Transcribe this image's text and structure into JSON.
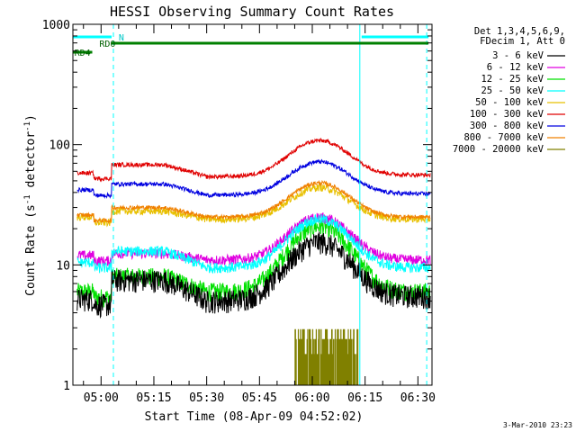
{
  "page": {
    "timestamp": "3-Mar-2010 23:23"
  },
  "chart_data": {
    "type": "line",
    "title": "HESSI Observing Summary Count Rates",
    "xlabel": "Start Time (08-Apr-09 04:52:02)",
    "ylabel_parts": [
      "Count Rate (s",
      "-1",
      " detector",
      "-1",
      ")"
    ],
    "yscale": "log",
    "ylim": [
      1,
      1000
    ],
    "xlim_minutes": [
      292,
      394
    ],
    "x_unit": "minutes after 00:00 UT on 08-Apr-09",
    "y_ticks": [
      {
        "value": 1,
        "label": "1"
      },
      {
        "value": 10,
        "label": "10"
      },
      {
        "value": 100,
        "label": "100"
      },
      {
        "value": 1000,
        "label": "1000"
      }
    ],
    "x_ticks": [
      {
        "value": 300,
        "label": "05:00"
      },
      {
        "value": 315,
        "label": "05:15"
      },
      {
        "value": 330,
        "label": "05:30"
      },
      {
        "value": 345,
        "label": "05:45"
      },
      {
        "value": 360,
        "label": "06:00"
      },
      {
        "value": 375,
        "label": "06:15"
      },
      {
        "value": 390,
        "label": "06:30"
      }
    ],
    "legend_header": [
      "Det 1,3,4,5,6,9,",
      "FDecim 1, Att 0"
    ],
    "legend_position": "right of plot, top",
    "series": [
      {
        "name": "3 - 6 keV",
        "color": "#000000"
      },
      {
        "name": "6 - 12 keV",
        "color": "#e000e0"
      },
      {
        "name": "12 - 25 keV",
        "color": "#00e000"
      },
      {
        "name": "25 - 50 keV",
        "color": "#00ffff"
      },
      {
        "name": "50 - 100 keV",
        "color": "#e8c000"
      },
      {
        "name": "100 - 300 keV",
        "color": "#e00000"
      },
      {
        "name": "300 - 800 keV",
        "color": "#0000e0"
      },
      {
        "name": "800 - 7000 keV",
        "color": "#f08000"
      },
      {
        "name": "7000 - 20000 keV",
        "color": "#808000"
      }
    ],
    "flag_bars": [
      {
        "label": "N",
        "color": "#00ffff",
        "segments": [
          [
            292,
            303
          ],
          [
            374,
            393
          ]
        ]
      },
      {
        "label": "RD0",
        "color": "#008000",
        "segments": [
          [
            303,
            393
          ]
        ]
      },
      {
        "label": "RD4",
        "color": "#008000",
        "segments": [
          [
            292,
            297.5
          ]
        ]
      }
    ],
    "vertical_markers": [
      {
        "x": 303.5,
        "style": "dashed",
        "color": "#00ffff"
      },
      {
        "x": 373.5,
        "style": "solid",
        "color": "#00ffff"
      },
      {
        "x": 392.5,
        "style": "dashed",
        "color": "#00ffff"
      }
    ],
    "curve_shape": {
      "description": "flat baseline with a smooth peak near 06:02, data gap 04:52-04:53",
      "peak_time": 362,
      "peak_width": 7.5,
      "dip_window": [
        298,
        303
      ]
    },
    "series_levels": [
      {
        "name": "3 - 6 keV",
        "base_early": 5.2,
        "base_late": 7.5,
        "base_mid": 5.0,
        "peak": 15.5,
        "base_end": 5.5
      },
      {
        "name": "6 - 12 keV",
        "base_early": 12.0,
        "base_late": 12.5,
        "base_mid": 11.0,
        "peak": 25.0,
        "base_end": 11.0
      },
      {
        "name": "12 - 25 keV",
        "base_early": 6.0,
        "base_late": 8.0,
        "base_mid": 6.0,
        "peak": 21.0,
        "base_end": 6.0
      },
      {
        "name": "25 - 50 keV",
        "base_early": 10.5,
        "base_late": 13.0,
        "base_mid": 9.5,
        "peak": 24.0,
        "base_end": 9.5
      },
      {
        "name": "50 - 100 keV",
        "base_early": 25.0,
        "base_late": 28.0,
        "base_mid": 24.0,
        "peak": 44.0,
        "base_end": 24.0
      },
      {
        "name": "100 - 300 keV",
        "base_early": 58.0,
        "base_late": 68.0,
        "base_mid": 54.0,
        "peak": 108.0,
        "base_end": 56.0
      },
      {
        "name": "300 - 800 keV",
        "base_early": 42.0,
        "base_late": 47.0,
        "base_mid": 38.0,
        "peak": 72.0,
        "base_end": 39.0
      },
      {
        "name": "800 - 7000 keV",
        "base_early": 26.0,
        "base_late": 30.0,
        "base_mid": 25.0,
        "peak": 48.0,
        "base_end": 25.0
      }
    ],
    "high_energy_burst": {
      "name": "7000 - 20000 keV",
      "window": [
        355,
        373
      ],
      "levels": [
        1.8,
        2.4,
        2.9
      ]
    }
  }
}
